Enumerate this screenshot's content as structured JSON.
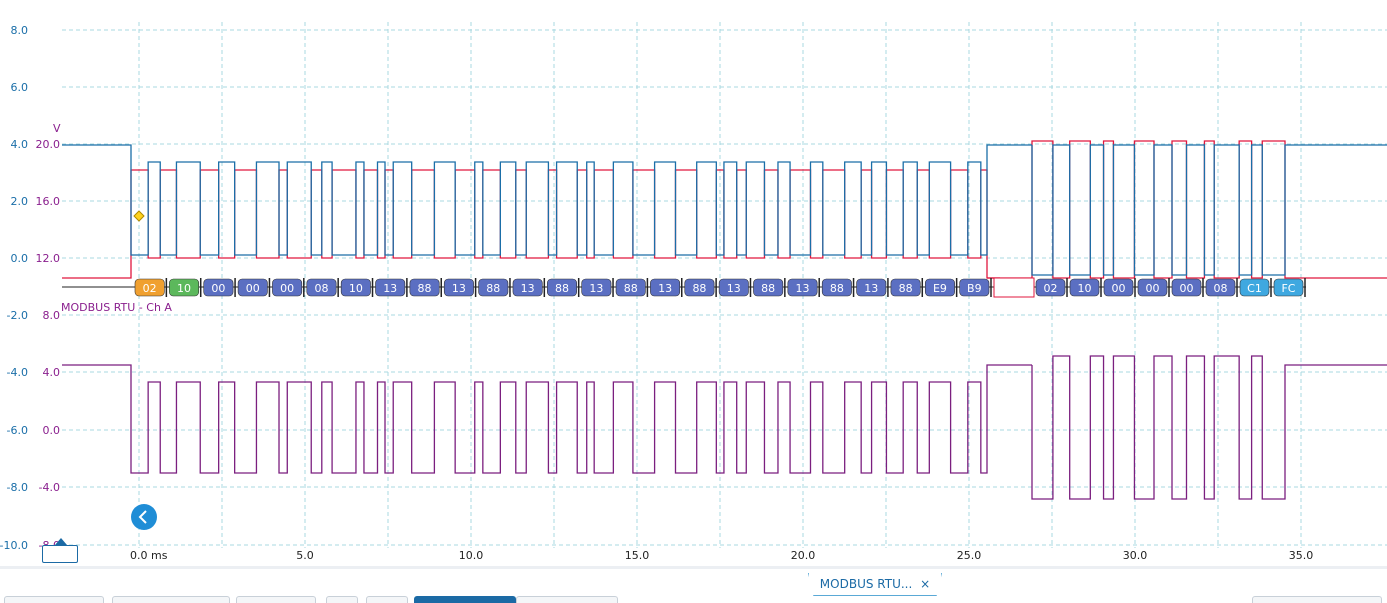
{
  "colors": {
    "channel_a": "#1a6ea8",
    "channel_b": "#e0173e",
    "math_channel": "#7b1f7f",
    "grid": "#a8d8e0",
    "axis_text_blue": "#1a6ea8",
    "axis_text_purple": "#8a1f8e",
    "packet_default": "#5b6fc2",
    "packet_address": "#f0a030",
    "packet_function": "#5cb85c",
    "packet_crc": "#3fa8e0"
  },
  "axes": {
    "left_volts": [
      "8.0",
      "6.0",
      "4.0",
      "2.0",
      "0.0",
      "-2.0",
      "-4.0",
      "-6.0",
      "-8.0",
      "-10.0"
    ],
    "ch_b_unit": "V",
    "ch_b_volts": [
      "20.0",
      "16.0",
      "12.0",
      "8.0"
    ],
    "math_volts": [
      "4.0",
      "0.0",
      "-4.0",
      "-8.0"
    ],
    "time": [
      "0.0 ms",
      "5.0",
      "10.0",
      "15.0",
      "20.0",
      "25.0",
      "30.0",
      "35.0"
    ]
  },
  "decoder": {
    "label": "MODBUS RTU - Ch A",
    "packets_frame1": [
      {
        "text": "02",
        "kind": "address"
      },
      {
        "text": "10",
        "kind": "function"
      },
      {
        "text": "00",
        "kind": "data"
      },
      {
        "text": "00",
        "kind": "data"
      },
      {
        "text": "00",
        "kind": "data"
      },
      {
        "text": "08",
        "kind": "data"
      },
      {
        "text": "10",
        "kind": "data"
      },
      {
        "text": "13",
        "kind": "data"
      },
      {
        "text": "88",
        "kind": "data"
      },
      {
        "text": "13",
        "kind": "data"
      },
      {
        "text": "88",
        "kind": "data"
      },
      {
        "text": "13",
        "kind": "data"
      },
      {
        "text": "88",
        "kind": "data"
      },
      {
        "text": "13",
        "kind": "data"
      },
      {
        "text": "88",
        "kind": "data"
      },
      {
        "text": "13",
        "kind": "data"
      },
      {
        "text": "88",
        "kind": "data"
      },
      {
        "text": "13",
        "kind": "data"
      },
      {
        "text": "88",
        "kind": "data"
      },
      {
        "text": "13",
        "kind": "data"
      },
      {
        "text": "88",
        "kind": "data"
      },
      {
        "text": "13",
        "kind": "data"
      },
      {
        "text": "88",
        "kind": "data"
      },
      {
        "text": "E9",
        "kind": "data"
      },
      {
        "text": "B9",
        "kind": "data"
      }
    ],
    "packets_frame2": [
      {
        "text": "02",
        "kind": "data"
      },
      {
        "text": "10",
        "kind": "data"
      },
      {
        "text": "00",
        "kind": "data"
      },
      {
        "text": "00",
        "kind": "data"
      },
      {
        "text": "00",
        "kind": "data"
      },
      {
        "text": "08",
        "kind": "data"
      },
      {
        "text": "C1",
        "kind": "crc"
      },
      {
        "text": "FC",
        "kind": "crc"
      }
    ]
  },
  "tabs": {
    "active_tab": "MODBUS RTU...",
    "close_glyph": "×"
  },
  "icons": {
    "nav": "chevron-left-icon",
    "ruler": "ruler-handle-icon"
  }
}
